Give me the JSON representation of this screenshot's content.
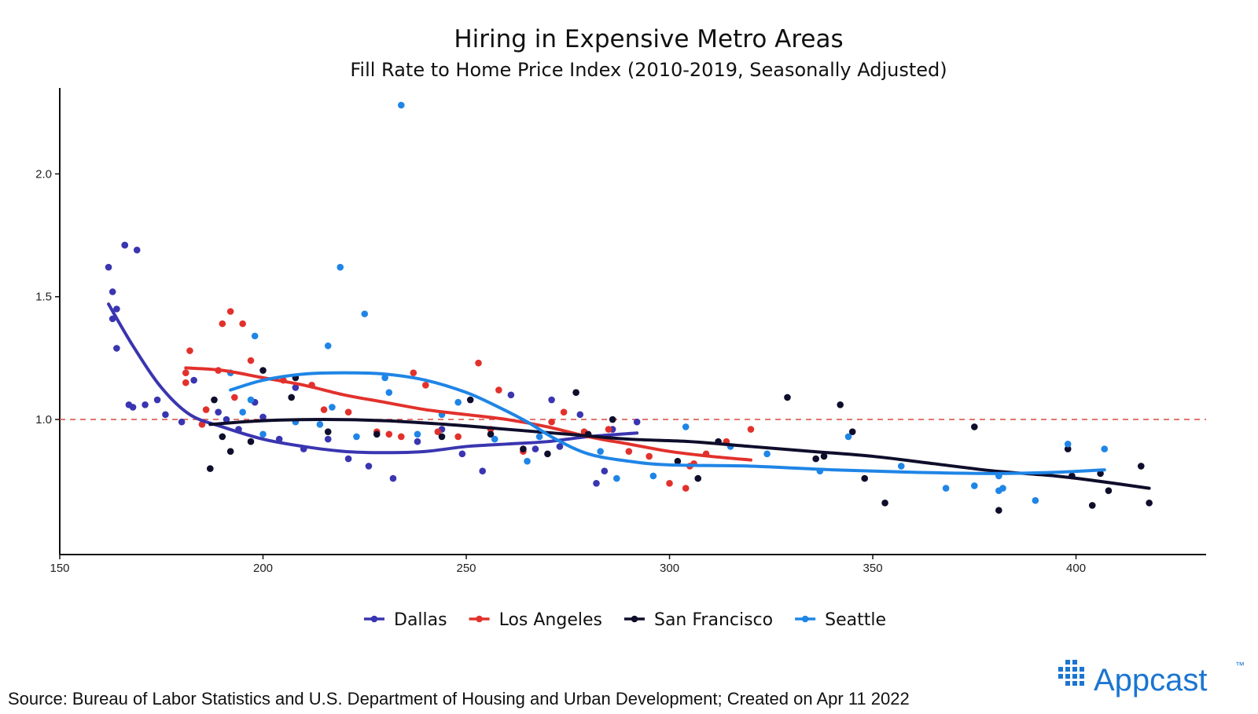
{
  "chart_data": {
    "type": "scatter",
    "title": "Hiring in Expensive Metro Areas",
    "subtitle": "Fill Rate to Home Price Index (2010-2019, Seasonally Adjusted)",
    "xlabel": "",
    "ylabel": "",
    "xlim": [
      150,
      432
    ],
    "ylim": [
      0.45,
      2.35
    ],
    "x_ticks": [
      150,
      200,
      250,
      300,
      350,
      400
    ],
    "x_tick_labels": [
      "150",
      "200",
      "250",
      "300",
      "350",
      "400"
    ],
    "y_ticks": [
      1.0,
      1.5,
      2.0
    ],
    "y_tick_labels": [
      "1.0",
      "1.5",
      "2.0"
    ],
    "reference_line": {
      "y": 1.0,
      "style": "dashed",
      "color": "#d94a3d"
    },
    "legend_position": "bottom",
    "series": [
      {
        "name": "Dallas",
        "color": "#3a35b0",
        "points": [
          [
            162,
            1.62
          ],
          [
            163,
            1.52
          ],
          [
            163,
            1.41
          ],
          [
            164,
            1.45
          ],
          [
            164,
            1.29
          ],
          [
            166,
            1.71
          ],
          [
            166,
            1.71
          ],
          [
            167,
            1.06
          ],
          [
            168,
            1.05
          ],
          [
            169,
            1.69
          ],
          [
            171,
            1.06
          ],
          [
            174,
            1.08
          ],
          [
            176,
            1.02
          ],
          [
            180,
            0.99
          ],
          [
            183,
            1.16
          ],
          [
            189,
            1.03
          ],
          [
            191,
            1.0
          ],
          [
            194,
            0.96
          ],
          [
            198,
            1.07
          ],
          [
            200,
            1.01
          ],
          [
            204,
            0.92
          ],
          [
            208,
            1.13
          ],
          [
            210,
            0.88
          ],
          [
            216,
            0.92
          ],
          [
            221,
            0.84
          ],
          [
            226,
            0.81
          ],
          [
            232,
            0.76
          ],
          [
            238,
            0.91
          ],
          [
            244,
            0.96
          ],
          [
            249,
            0.86
          ],
          [
            254,
            0.79
          ],
          [
            261,
            1.1
          ],
          [
            267,
            0.88
          ],
          [
            271,
            1.08
          ],
          [
            273,
            0.89
          ],
          [
            278,
            1.02
          ],
          [
            282,
            0.74
          ],
          [
            284,
            0.79
          ],
          [
            286,
            0.96
          ],
          [
            292,
            0.99
          ]
        ],
        "trend": [
          [
            162,
            1.47
          ],
          [
            168,
            1.3
          ],
          [
            175,
            1.13
          ],
          [
            182,
            1.02
          ],
          [
            190,
            0.97
          ],
          [
            200,
            0.92
          ],
          [
            210,
            0.89
          ],
          [
            220,
            0.87
          ],
          [
            230,
            0.865
          ],
          [
            240,
            0.87
          ],
          [
            250,
            0.89
          ],
          [
            260,
            0.9
          ],
          [
            270,
            0.91
          ],
          [
            280,
            0.93
          ],
          [
            292,
            0.945
          ]
        ]
      },
      {
        "name": "Los Angeles",
        "color": "#e2312c",
        "points": [
          [
            181,
            1.19
          ],
          [
            182,
            1.28
          ],
          [
            181,
            1.15
          ],
          [
            185,
            0.98
          ],
          [
            186,
            1.04
          ],
          [
            189,
            1.2
          ],
          [
            190,
            1.39
          ],
          [
            192,
            1.44
          ],
          [
            193,
            1.09
          ],
          [
            195,
            1.39
          ],
          [
            197,
            1.24
          ],
          [
            205,
            1.16
          ],
          [
            212,
            1.14
          ],
          [
            215,
            1.04
          ],
          [
            221,
            1.03
          ],
          [
            228,
            0.95
          ],
          [
            231,
            0.94
          ],
          [
            234,
            0.93
          ],
          [
            237,
            1.19
          ],
          [
            240,
            1.14
          ],
          [
            243,
            0.95
          ],
          [
            248,
            0.93
          ],
          [
            253,
            1.23
          ],
          [
            256,
            0.96
          ],
          [
            258,
            1.12
          ],
          [
            264,
            0.87
          ],
          [
            271,
            0.99
          ],
          [
            274,
            1.03
          ],
          [
            279,
            0.95
          ],
          [
            285,
            0.96
          ],
          [
            290,
            0.87
          ],
          [
            295,
            0.85
          ],
          [
            300,
            0.74
          ],
          [
            304,
            0.72
          ],
          [
            305,
            0.81
          ],
          [
            306,
            0.82
          ],
          [
            309,
            0.86
          ],
          [
            314,
            0.91
          ],
          [
            320,
            0.96
          ]
        ],
        "trend": [
          [
            181,
            1.21
          ],
          [
            190,
            1.2
          ],
          [
            200,
            1.17
          ],
          [
            210,
            1.14
          ],
          [
            220,
            1.1
          ],
          [
            230,
            1.07
          ],
          [
            240,
            1.04
          ],
          [
            250,
            1.02
          ],
          [
            260,
            1.0
          ],
          [
            270,
            0.97
          ],
          [
            280,
            0.93
          ],
          [
            290,
            0.9
          ],
          [
            300,
            0.87
          ],
          [
            310,
            0.85
          ],
          [
            320,
            0.835
          ]
        ]
      },
      {
        "name": "San Francisco",
        "color": "#0e0d2b",
        "points": [
          [
            187,
            0.8
          ],
          [
            188,
            1.08
          ],
          [
            190,
            0.93
          ],
          [
            192,
            0.87
          ],
          [
            197,
            0.91
          ],
          [
            200,
            1.2
          ],
          [
            207,
            1.09
          ],
          [
            208,
            1.17
          ],
          [
            216,
            0.95
          ],
          [
            228,
            0.94
          ],
          [
            244,
            0.93
          ],
          [
            251,
            1.08
          ],
          [
            256,
            0.94
          ],
          [
            264,
            0.88
          ],
          [
            270,
            0.86
          ],
          [
            277,
            1.11
          ],
          [
            280,
            0.94
          ],
          [
            286,
            1.0
          ],
          [
            302,
            0.83
          ],
          [
            307,
            0.76
          ],
          [
            312,
            0.91
          ],
          [
            329,
            1.09
          ],
          [
            336,
            0.84
          ],
          [
            338,
            0.85
          ],
          [
            342,
            1.06
          ],
          [
            345,
            0.95
          ],
          [
            348,
            0.76
          ],
          [
            353,
            0.66
          ],
          [
            375,
            0.97
          ],
          [
            381,
            0.63
          ],
          [
            398,
            0.88
          ],
          [
            399,
            0.77
          ],
          [
            404,
            0.65
          ],
          [
            406,
            0.78
          ],
          [
            408,
            0.71
          ],
          [
            416,
            0.81
          ],
          [
            418,
            0.66
          ]
        ],
        "trend": [
          [
            187,
            0.98
          ],
          [
            200,
            0.995
          ],
          [
            215,
            1.0
          ],
          [
            230,
            0.995
          ],
          [
            245,
            0.98
          ],
          [
            260,
            0.96
          ],
          [
            275,
            0.94
          ],
          [
            290,
            0.92
          ],
          [
            305,
            0.91
          ],
          [
            320,
            0.89
          ],
          [
            335,
            0.87
          ],
          [
            350,
            0.85
          ],
          [
            365,
            0.82
          ],
          [
            380,
            0.79
          ],
          [
            395,
            0.77
          ],
          [
            405,
            0.75
          ],
          [
            418,
            0.72
          ]
        ]
      },
      {
        "name": "Seattle",
        "color": "#1f85e6",
        "points": [
          [
            192,
            1.19
          ],
          [
            195,
            1.03
          ],
          [
            197,
            1.08
          ],
          [
            198,
            1.34
          ],
          [
            200,
            0.94
          ],
          [
            208,
            0.99
          ],
          [
            214,
            0.98
          ],
          [
            216,
            1.3
          ],
          [
            217,
            1.05
          ],
          [
            219,
            1.62
          ],
          [
            223,
            0.93
          ],
          [
            225,
            1.43
          ],
          [
            230,
            1.17
          ],
          [
            231,
            1.11
          ],
          [
            234,
            2.28
          ],
          [
            238,
            0.94
          ],
          [
            244,
            1.02
          ],
          [
            248,
            1.07
          ],
          [
            257,
            0.92
          ],
          [
            265,
            0.83
          ],
          [
            268,
            0.93
          ],
          [
            283,
            0.87
          ],
          [
            287,
            0.76
          ],
          [
            296,
            0.77
          ],
          [
            304,
            0.97
          ],
          [
            315,
            0.89
          ],
          [
            324,
            0.86
          ],
          [
            337,
            0.79
          ],
          [
            344,
            0.93
          ],
          [
            357,
            0.81
          ],
          [
            368,
            0.72
          ],
          [
            375,
            0.73
          ],
          [
            381,
            0.71
          ],
          [
            381,
            0.77
          ],
          [
            382,
            0.72
          ],
          [
            390,
            0.67
          ],
          [
            398,
            0.9
          ],
          [
            407,
            0.88
          ]
        ],
        "trend": [
          [
            192,
            1.12
          ],
          [
            200,
            1.16
          ],
          [
            210,
            1.185
          ],
          [
            220,
            1.19
          ],
          [
            230,
            1.185
          ],
          [
            240,
            1.16
          ],
          [
            250,
            1.11
          ],
          [
            258,
            1.05
          ],
          [
            265,
            0.99
          ],
          [
            272,
            0.92
          ],
          [
            280,
            0.86
          ],
          [
            290,
            0.83
          ],
          [
            300,
            0.815
          ],
          [
            320,
            0.81
          ],
          [
            340,
            0.795
          ],
          [
            360,
            0.785
          ],
          [
            380,
            0.78
          ],
          [
            395,
            0.785
          ],
          [
            407,
            0.795
          ]
        ]
      }
    ]
  },
  "source_text": "Source: Bureau of Labor Statistics and U.S. Department of Housing and Urban Development; Created on Apr 11 2022",
  "logo": {
    "text": "Appcast",
    "trademark": "™",
    "color": "#1b75d0"
  }
}
